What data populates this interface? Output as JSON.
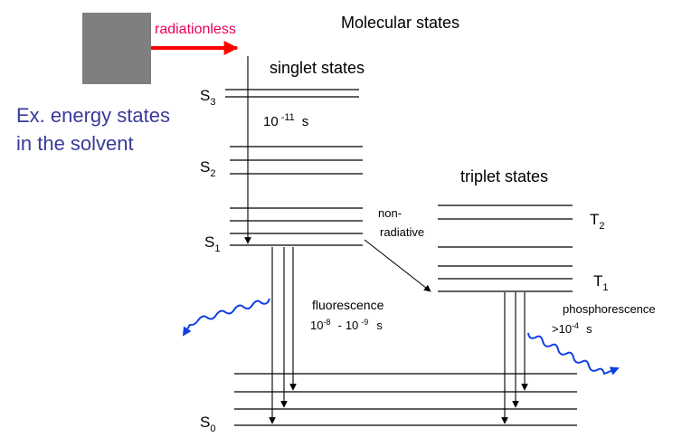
{
  "title": "Molecular states",
  "radiationless_label": "radiationless",
  "solvent_label": [
    "Ex. energy states",
    "in the solvent"
  ],
  "singlet_label": "singlet states",
  "triplet_label": "triplet states",
  "states": {
    "S3": {
      "main": "S",
      "sub": "3"
    },
    "S2": {
      "main": "S",
      "sub": "2"
    },
    "S1": {
      "main": "S",
      "sub": "1"
    },
    "S0": {
      "main": "S",
      "sub": "0"
    },
    "T2": {
      "main": "T",
      "sub": "2"
    },
    "T1": {
      "main": "T",
      "sub": "1"
    }
  },
  "relaxation_time": {
    "base": "10",
    "exp": "-11",
    "unit": "s"
  },
  "nonradiative_label": [
    "non-",
    "radiative"
  ],
  "fluorescence": {
    "label": "fluorescence",
    "a_base": "10",
    "a_exp": "-8",
    "dash": "-",
    "b_base": "10",
    "b_exp": "-9",
    "unit": "s"
  },
  "phosphorescence": {
    "label": "phosphorescence",
    "prefix": ">",
    "base": "10",
    "exp": "-4",
    "unit": "s"
  },
  "colors": {
    "radiationless_arrow": "#ff0000",
    "radiationless_text": "#e8005a",
    "solvent_text": "#3a3a9a",
    "photon_wave": "#1040e0",
    "solvent_box": "#7f7f7f"
  }
}
